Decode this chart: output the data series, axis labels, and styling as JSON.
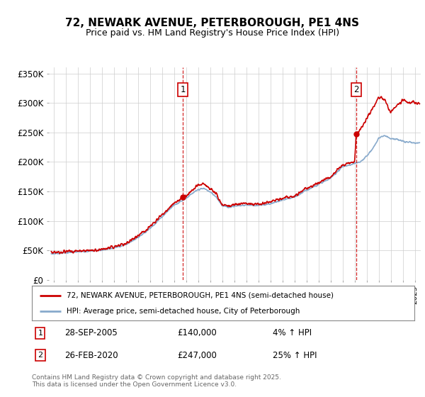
{
  "title": "72, NEWARK AVENUE, PETERBOROUGH, PE1 4NS",
  "subtitle": "Price paid vs. HM Land Registry's House Price Index (HPI)",
  "ylim": [
    0,
    360000
  ],
  "yticks": [
    0,
    50000,
    100000,
    150000,
    200000,
    250000,
    300000,
    350000
  ],
  "ytick_labels": [
    "£0",
    "£50K",
    "£100K",
    "£150K",
    "£200K",
    "£250K",
    "£300K",
    "£350K"
  ],
  "xlim_start": 1994.6,
  "xlim_end": 2025.5,
  "background_color": "#ffffff",
  "outer_bg_color": "#ffffff",
  "line1_color": "#cc0000",
  "line2_color": "#88aacc",
  "marker1_year": 2005.75,
  "marker2_year": 2020.14,
  "marker1_value": 140000,
  "marker2_value": 247000,
  "marker1_label": "28-SEP-2005",
  "marker2_label": "26-FEB-2020",
  "marker1_pct": "4% ↑ HPI",
  "marker2_pct": "25% ↑ HPI",
  "legend1_label": "72, NEWARK AVENUE, PETERBOROUGH, PE1 4NS (semi-detached house)",
  "legend2_label": "HPI: Average price, semi-detached house, City of Peterborough",
  "footer": "Contains HM Land Registry data © Crown copyright and database right 2025.\nThis data is licensed under the Open Government Licence v3.0.",
  "title_fontsize": 11,
  "subtitle_fontsize": 9
}
